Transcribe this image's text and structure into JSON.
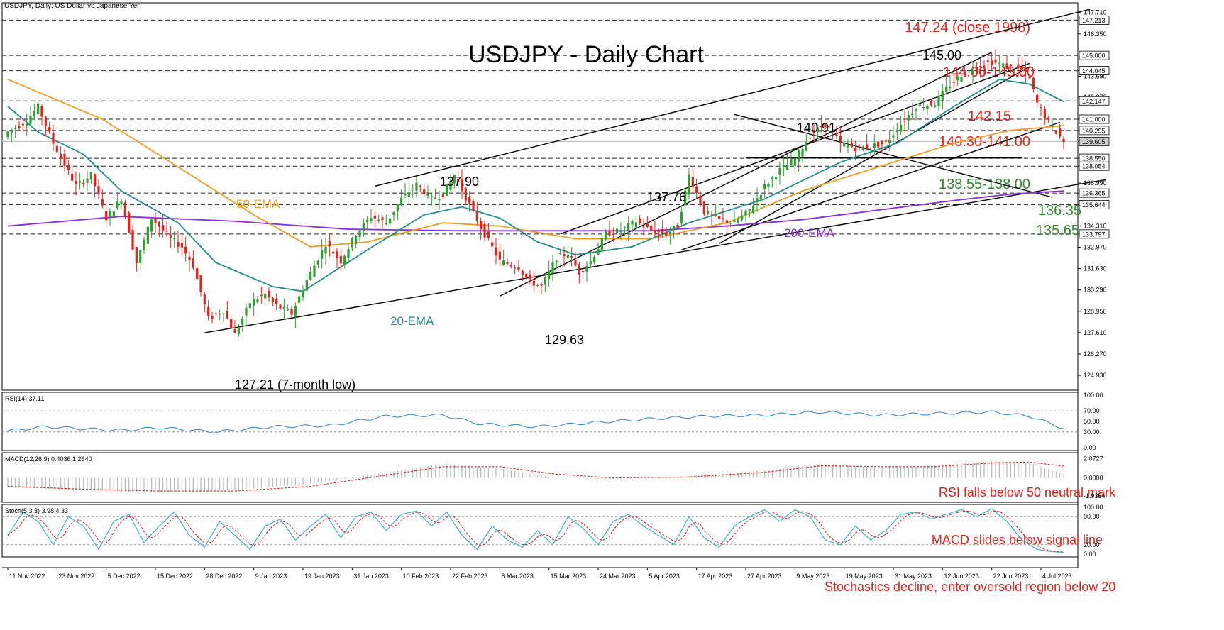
{
  "symbol_label": "USDJPY, Daily:  US Dollar vs Japanese Yen",
  "title": "USDJPY - Daily Chart",
  "colors": {
    "up": "#2e9e2e",
    "down": "#e8201a",
    "ema20": "#1f8f8f",
    "ema50": "#f39b1e",
    "ema200": "#8a2be2",
    "annot_red": "#e8201a",
    "annot_green": "#2e8b2e",
    "rsi": "#3a8fd0",
    "stoch_main": "#3cb4c8",
    "stoch_signal": "#e8201a",
    "grid": "#333333"
  },
  "chart_data": {
    "type": "candlestick",
    "x_dates": [
      "11 Nov 2022",
      "23 Nov 2022",
      "5 Dec 2022",
      "15 Dec 2022",
      "28 Dec 2022",
      "9 Jan 2023",
      "19 Jan 2023",
      "31 Jan 2023",
      "10 Feb 2023",
      "22 Feb 2023",
      "6 Mar 2023",
      "15 Mar 2023",
      "24 Mar 2023",
      "5 Apr 2023",
      "17 Apr 2023",
      "27 Apr 2023",
      "9 May 2023",
      "19 May 2023",
      "31 May 2023",
      "12 Jun 2023",
      "22 Jun 2023",
      "4 Jul 2023"
    ],
    "y_ticks": [
      "147.710",
      "146.350",
      "144.045",
      "143.690",
      "142.370",
      "141.000",
      "140.295",
      "139.605",
      "138.550",
      "138.054",
      "136.990",
      "136.365",
      "135.644",
      "134.310",
      "133.797",
      "132.970",
      "131.630",
      "130.290",
      "128.950",
      "127.610",
      "126.270",
      "124.930"
    ],
    "y_range": [
      124.0,
      148.3
    ],
    "price_boxes": [
      "147.213",
      "145.000",
      "144.045",
      "142.147",
      "141.000",
      "140.295",
      "139.605",
      "138.550",
      "138.054",
      "136.365",
      "135.644",
      "133.797"
    ],
    "ema_labels": {
      "ema50": "50-EMA",
      "ema20": "20-EMA",
      "ema200": "200-EMA"
    },
    "levels": [
      {
        "price": 147.213,
        "label": "147.24 (close 1998)",
        "color": "red"
      },
      {
        "price": 145.0,
        "label": "144.00-145.00",
        "color": "red"
      },
      {
        "price": 144.045,
        "label": "",
        "color": "red"
      },
      {
        "price": 142.147,
        "label": "142.15",
        "color": "red"
      },
      {
        "price": 141.0,
        "label": "140.30-141.00",
        "color": "red"
      },
      {
        "price": 140.295,
        "label": "",
        "color": "red"
      },
      {
        "price": 138.55,
        "label": "138.55-138.00",
        "color": "green"
      },
      {
        "price": 138.054,
        "label": "",
        "color": "green"
      },
      {
        "price": 136.365,
        "label": "136.35",
        "color": "green"
      },
      {
        "price": 135.644,
        "label": "135.65",
        "color": "green"
      },
      {
        "price": 133.797,
        "label": "",
        "color": "green"
      }
    ],
    "annotations": [
      {
        "price": 145.0,
        "label": "145.00"
      },
      {
        "price": 140.91,
        "label": "140.91"
      },
      {
        "price": 137.9,
        "label": "137.90"
      },
      {
        "price": 137.76,
        "label": "137.76"
      },
      {
        "price": 129.63,
        "label": "129.63"
      },
      {
        "price": 127.21,
        "label": "127.21 (7-month low)"
      }
    ],
    "close_anchors": [
      [
        0,
        140.2
      ],
      [
        5,
        140.9
      ],
      [
        8,
        141.8
      ],
      [
        12,
        139.5
      ],
      [
        18,
        136.8
      ],
      [
        22,
        137.5
      ],
      [
        26,
        134.8
      ],
      [
        30,
        136.0
      ],
      [
        34,
        132.0
      ],
      [
        38,
        134.8
      ],
      [
        43,
        133.5
      ],
      [
        46,
        133.0
      ],
      [
        49,
        131.8
      ],
      [
        53,
        128.5
      ],
      [
        57,
        129.0
      ],
      [
        60,
        127.5
      ],
      [
        64,
        129.5
      ],
      [
        68,
        130.0
      ],
      [
        71,
        129.3
      ],
      [
        75,
        128.8
      ],
      [
        79,
        130.9
      ],
      [
        84,
        133.2
      ],
      [
        88,
        132.1
      ],
      [
        92,
        133.8
      ],
      [
        96,
        134.9
      ],
      [
        100,
        134.5
      ],
      [
        104,
        136.0
      ],
      [
        108,
        136.9
      ],
      [
        112,
        136.0
      ],
      [
        115,
        136.3
      ],
      [
        118,
        137.5
      ],
      [
        121,
        136.1
      ],
      [
        125,
        134.2
      ],
      [
        130,
        132.1
      ],
      [
        135,
        131.7
      ],
      [
        138,
        130.8
      ],
      [
        141,
        130.5
      ],
      [
        145,
        132.3
      ],
      [
        148,
        132.6
      ],
      [
        151,
        131.4
      ],
      [
        154,
        132.1
      ],
      [
        158,
        133.8
      ],
      [
        162,
        134.0
      ],
      [
        166,
        134.6
      ],
      [
        170,
        134.0
      ],
      [
        174,
        133.8
      ],
      [
        177,
        134.3
      ],
      [
        180,
        137.5
      ],
      [
        184,
        135.2
      ],
      [
        188,
        134.7
      ],
      [
        192,
        134.5
      ],
      [
        196,
        135.3
      ],
      [
        200,
        136.8
      ],
      [
        204,
        137.8
      ],
      [
        208,
        138.5
      ],
      [
        212,
        140.0
      ],
      [
        216,
        140.7
      ],
      [
        220,
        139.5
      ],
      [
        224,
        139.2
      ],
      [
        228,
        139.3
      ],
      [
        232,
        139.5
      ],
      [
        236,
        140.7
      ],
      [
        240,
        141.8
      ],
      [
        245,
        142.0
      ],
      [
        248,
        142.9
      ],
      [
        252,
        143.8
      ],
      [
        256,
        144.3
      ],
      [
        260,
        144.6
      ],
      [
        264,
        144.3
      ],
      [
        268,
        144.1
      ],
      [
        270,
        143.5
      ],
      [
        272,
        142.0
      ],
      [
        275,
        140.8
      ],
      [
        277,
        140.2
      ],
      [
        279,
        139.6
      ]
    ],
    "ema20_anchors": [
      [
        0,
        141.8
      ],
      [
        8,
        140.2
      ],
      [
        20,
        138.8
      ],
      [
        30,
        136.5
      ],
      [
        45,
        134.5
      ],
      [
        55,
        132.0
      ],
      [
        70,
        130.5
      ],
      [
        78,
        130.2
      ],
      [
        95,
        132.8
      ],
      [
        110,
        135.0
      ],
      [
        120,
        135.5
      ],
      [
        130,
        134.8
      ],
      [
        140,
        133.3
      ],
      [
        150,
        132.5
      ],
      [
        165,
        133.0
      ],
      [
        180,
        134.5
      ],
      [
        200,
        136.0
      ],
      [
        220,
        138.3
      ],
      [
        235,
        139.5
      ],
      [
        250,
        141.8
      ],
      [
        262,
        143.5
      ],
      [
        270,
        143.2
      ],
      [
        279,
        142.1
      ]
    ],
    "ema50_anchors": [
      [
        0,
        143.5
      ],
      [
        25,
        141.0
      ],
      [
        45,
        138.0
      ],
      [
        65,
        135.0
      ],
      [
        80,
        133.0
      ],
      [
        95,
        133.3
      ],
      [
        115,
        134.5
      ],
      [
        130,
        134.3
      ],
      [
        150,
        133.5
      ],
      [
        170,
        133.5
      ],
      [
        190,
        134.5
      ],
      [
        210,
        136.5
      ],
      [
        230,
        138.0
      ],
      [
        250,
        139.5
      ],
      [
        265,
        140.3
      ],
      [
        279,
        140.6
      ]
    ],
    "ema200_anchors": [
      [
        0,
        134.3
      ],
      [
        30,
        134.9
      ],
      [
        60,
        134.6
      ],
      [
        90,
        134.1
      ],
      [
        120,
        134.0
      ],
      [
        150,
        134.0
      ],
      [
        170,
        134.0
      ],
      [
        190,
        134.3
      ],
      [
        210,
        134.7
      ],
      [
        230,
        135.3
      ],
      [
        250,
        135.9
      ],
      [
        265,
        136.3
      ],
      [
        279,
        136.5
      ]
    ],
    "trendlines": [
      [
        [
          52,
          127.6
        ],
        [
          290,
          137.2
        ]
      ],
      [
        [
          97,
          136.8
        ],
        [
          286,
          147.9
        ]
      ],
      [
        [
          130,
          129.9
        ],
        [
          260,
          145.2
        ]
      ],
      [
        [
          146,
          133.8
        ],
        [
          270,
          144.5
        ]
      ],
      [
        [
          178,
          132.8
        ],
        [
          278,
          140.8
        ]
      ],
      [
        [
          188,
          133.2
        ],
        [
          270,
          144.3
        ]
      ],
      [
        [
          192,
          141.3
        ],
        [
          276,
          136.1
        ]
      ],
      [
        [
          195,
          138.57
        ],
        [
          268,
          138.57
        ]
      ]
    ],
    "rsi": {
      "label": "RSI(14) 37.11",
      "ticks": [
        "100.00",
        "70.00",
        "50.00",
        "30.00",
        "0.00"
      ],
      "anchors": [
        [
          0,
          32
        ],
        [
          10,
          40
        ],
        [
          20,
          36
        ],
        [
          30,
          33
        ],
        [
          40,
          38
        ],
        [
          55,
          30
        ],
        [
          70,
          40
        ],
        [
          85,
          42
        ],
        [
          100,
          60
        ],
        [
          115,
          62
        ],
        [
          125,
          45
        ],
        [
          140,
          40
        ],
        [
          155,
          48
        ],
        [
          170,
          55
        ],
        [
          185,
          60
        ],
        [
          200,
          62
        ],
        [
          215,
          68
        ],
        [
          230,
          62
        ],
        [
          245,
          65
        ],
        [
          260,
          68
        ],
        [
          270,
          60
        ],
        [
          279,
          37
        ]
      ],
      "note": "RSI falls below 50 neutral mark"
    },
    "macd": {
      "label": "MACD(12,26,9) 0.4036 1.2640",
      "ticks": [
        "2.0727",
        "0.0000",
        "-1.9364"
      ],
      "anchors": [
        [
          0,
          -1.0
        ],
        [
          20,
          -1.3
        ],
        [
          40,
          -1.6
        ],
        [
          60,
          -1.3
        ],
        [
          80,
          -0.6
        ],
        [
          100,
          0.6
        ],
        [
          115,
          1.5
        ],
        [
          130,
          1.0
        ],
        [
          145,
          0.0
        ],
        [
          160,
          -0.1
        ],
        [
          180,
          0.2
        ],
        [
          200,
          0.8
        ],
        [
          215,
          1.5
        ],
        [
          230,
          1.1
        ],
        [
          245,
          1.3
        ],
        [
          260,
          1.8
        ],
        [
          270,
          1.6
        ],
        [
          279,
          0.4
        ]
      ],
      "signal_anchors": [
        [
          0,
          -0.9
        ],
        [
          20,
          -1.2
        ],
        [
          40,
          -1.4
        ],
        [
          60,
          -1.4
        ],
        [
          80,
          -0.9
        ],
        [
          100,
          0.3
        ],
        [
          115,
          1.2
        ],
        [
          130,
          1.2
        ],
        [
          145,
          0.4
        ],
        [
          160,
          0.0
        ],
        [
          180,
          0.1
        ],
        [
          200,
          0.6
        ],
        [
          215,
          1.3
        ],
        [
          230,
          1.2
        ],
        [
          245,
          1.2
        ],
        [
          260,
          1.6
        ],
        [
          270,
          1.7
        ],
        [
          279,
          1.26
        ]
      ],
      "note": "MACD slides below signal line"
    },
    "stoch": {
      "label": "Stoch(5,3,3) 3.98 4.33",
      "ticks": [
        "100.00",
        "80.00",
        "20.00",
        "0.00"
      ],
      "main_anchors": [
        [
          0,
          40
        ],
        [
          4,
          90
        ],
        [
          8,
          70
        ],
        [
          12,
          20
        ],
        [
          16,
          80
        ],
        [
          20,
          60
        ],
        [
          24,
          10
        ],
        [
          28,
          70
        ],
        [
          32,
          85
        ],
        [
          36,
          25
        ],
        [
          40,
          60
        ],
        [
          44,
          90
        ],
        [
          48,
          40
        ],
        [
          52,
          15
        ],
        [
          56,
          70
        ],
        [
          60,
          40
        ],
        [
          64,
          10
        ],
        [
          68,
          60
        ],
        [
          72,
          75
        ],
        [
          76,
          30
        ],
        [
          80,
          60
        ],
        [
          84,
          85
        ],
        [
          88,
          35
        ],
        [
          92,
          80
        ],
        [
          96,
          90
        ],
        [
          100,
          50
        ],
        [
          104,
          85
        ],
        [
          108,
          92
        ],
        [
          112,
          60
        ],
        [
          116,
          90
        ],
        [
          120,
          40
        ],
        [
          124,
          10
        ],
        [
          128,
          60
        ],
        [
          132,
          30
        ],
        [
          136,
          15
        ],
        [
          140,
          50
        ],
        [
          144,
          20
        ],
        [
          148,
          80
        ],
        [
          152,
          55
        ],
        [
          156,
          20
        ],
        [
          160,
          70
        ],
        [
          164,
          85
        ],
        [
          168,
          60
        ],
        [
          172,
          40
        ],
        [
          176,
          20
        ],
        [
          180,
          80
        ],
        [
          184,
          35
        ],
        [
          188,
          15
        ],
        [
          192,
          60
        ],
        [
          196,
          80
        ],
        [
          200,
          95
        ],
        [
          204,
          70
        ],
        [
          208,
          95
        ],
        [
          212,
          80
        ],
        [
          216,
          30
        ],
        [
          220,
          20
        ],
        [
          224,
          60
        ],
        [
          228,
          30
        ],
        [
          232,
          50
        ],
        [
          236,
          85
        ],
        [
          240,
          90
        ],
        [
          244,
          75
        ],
        [
          248,
          85
        ],
        [
          252,
          95
        ],
        [
          256,
          80
        ],
        [
          260,
          97
        ],
        [
          264,
          70
        ],
        [
          268,
          30
        ],
        [
          272,
          10
        ],
        [
          276,
          5
        ],
        [
          279,
          4
        ]
      ],
      "note": "Stochastics decline, enter oversold region below 20"
    }
  }
}
